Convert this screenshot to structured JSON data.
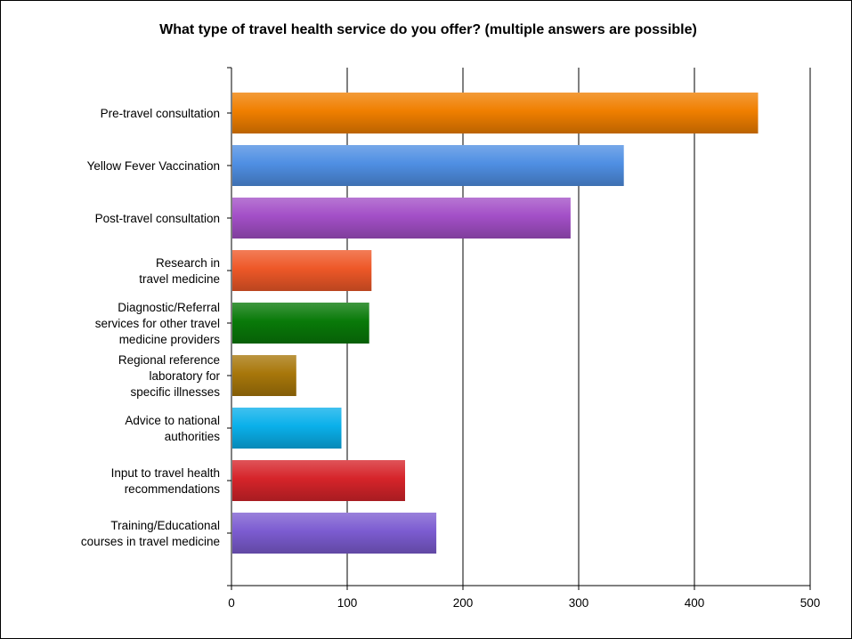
{
  "chart_data": {
    "type": "bar",
    "orientation": "horizontal",
    "title": "What type of travel health service do you offer? (multiple answers are possible)",
    "xlabel": "",
    "ylabel": "",
    "xlim": [
      0,
      500
    ],
    "x_ticks": [
      "0",
      "100",
      "200",
      "300",
      "400",
      "500"
    ],
    "grid": "vertical gridlines on",
    "legend": "none",
    "categories": [
      [
        "Pre-travel consultation"
      ],
      [
        "Yellow Fever Vaccination"
      ],
      [
        "Post-travel consultation"
      ],
      [
        "Research in",
        "travel medicine"
      ],
      [
        "Diagnostic/Referral",
        "services for other travel",
        "medicine providers"
      ],
      [
        "Regional reference",
        "laboratory for",
        "specific illnesses"
      ],
      [
        "Advice to national",
        "authorities"
      ],
      [
        "Input to travel health",
        "recommendations"
      ],
      [
        "Training/Educational",
        "courses in travel medicine"
      ]
    ],
    "values": [
      455,
      339,
      293,
      121,
      119,
      56,
      95,
      150,
      177
    ],
    "colors": [
      "#f07f00",
      "#4f8fe3",
      "#a34fc7",
      "#ee5828",
      "#097a09",
      "#a8770a",
      "#0ab0ea",
      "#d6242a",
      "#7c5cd1"
    ]
  }
}
